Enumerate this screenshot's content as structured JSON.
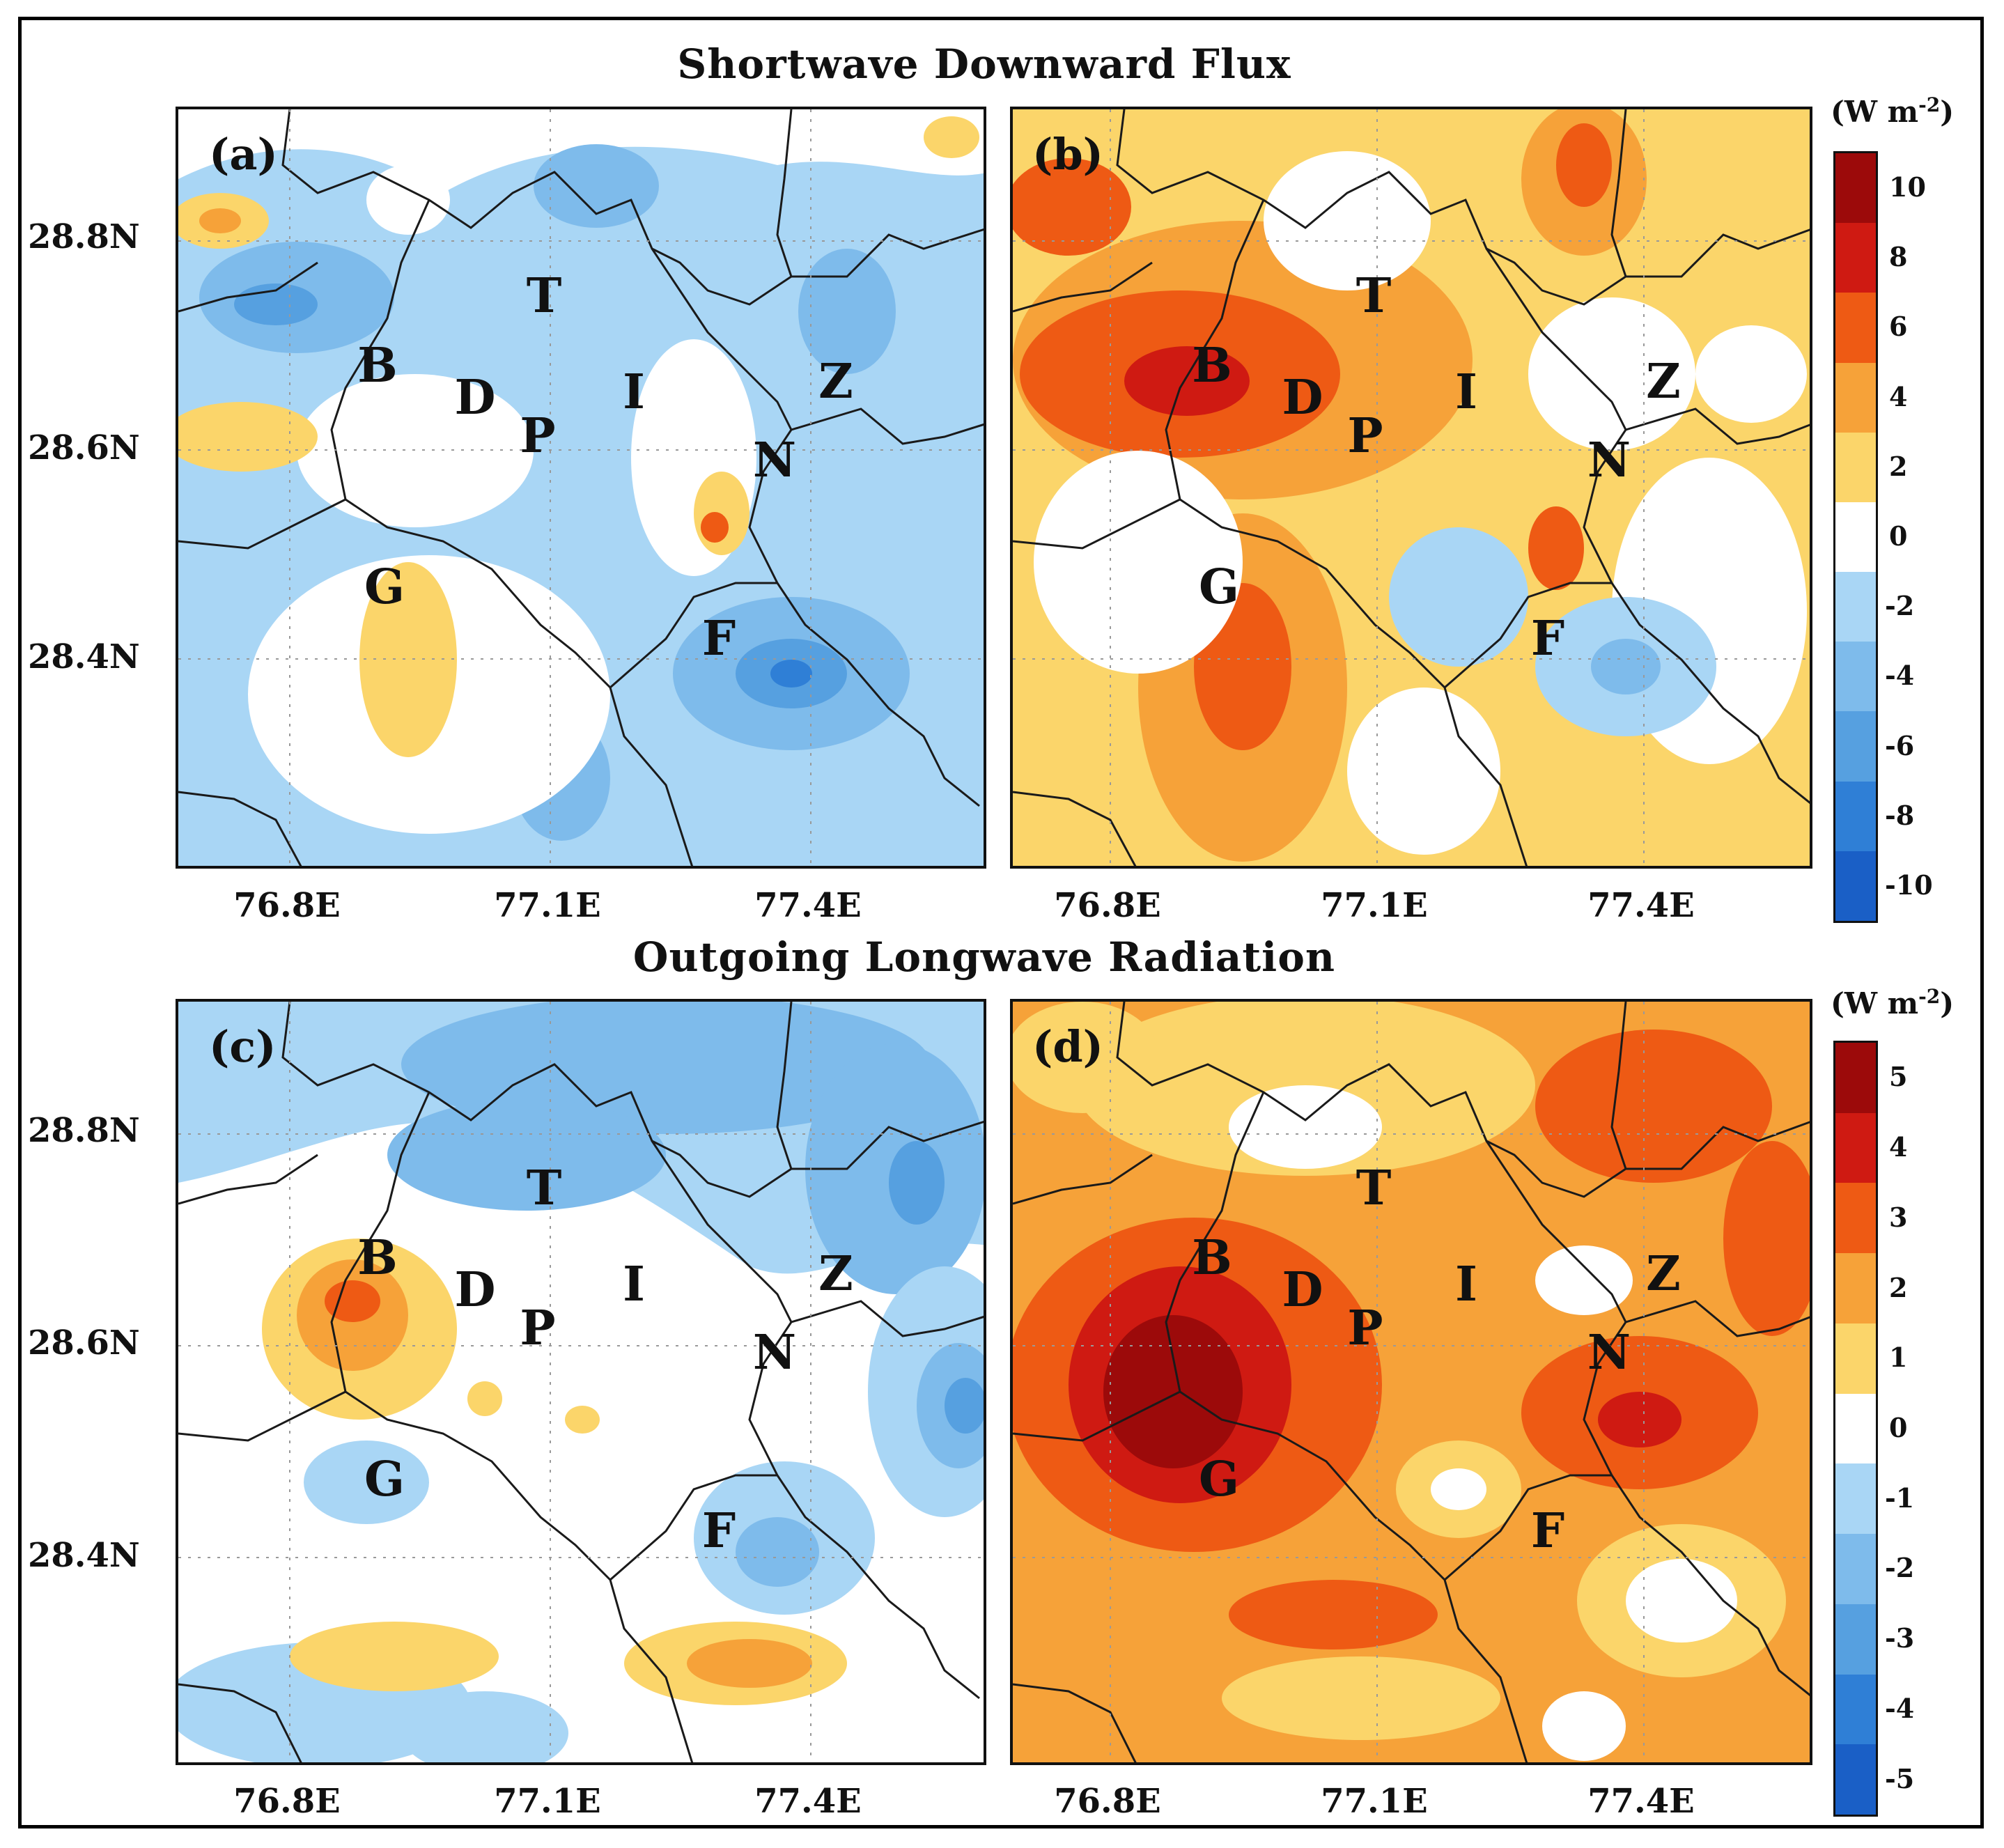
{
  "titles": {
    "top": "Shortwave Downward Flux",
    "bottom": "Outgoing Longwave Radiation"
  },
  "panel_labels": [
    "(a)",
    "(b)",
    "(c)",
    "(d)"
  ],
  "city_labels": [
    "T",
    "B",
    "D",
    "P",
    "I",
    "Z",
    "N",
    "G",
    "F"
  ],
  "axes": {
    "lat_ticks": [
      "28.8N",
      "28.6N",
      "28.4N"
    ],
    "lon_ticks": [
      "76.8E",
      "77.1E",
      "77.4E"
    ]
  },
  "colorbar_top": {
    "unit_text": "(W m",
    "unit_sup": "-2",
    "unit_close": ")",
    "tick_labels": [
      "10",
      "8",
      "6",
      "4",
      "2",
      "0",
      "-2",
      "-4",
      "-6",
      "-8",
      "-10"
    ],
    "colors": [
      "#9c0a0a",
      "#cf1a12",
      "#ee5a14",
      "#f6a239",
      "#fbd56a",
      "#ffffff",
      "#a9d6f5",
      "#7ebbeb",
      "#56a0e0",
      "#2f7fd6",
      "#1a5fc6"
    ]
  },
  "colorbar_bottom": {
    "unit_text": "(W m",
    "unit_sup": "-2",
    "unit_close": ")",
    "tick_labels": [
      "5",
      "4",
      "3",
      "2",
      "1",
      "0",
      "-1",
      "-2",
      "-3",
      "-4",
      "-5"
    ],
    "colors": [
      "#9c0a0a",
      "#cf1a12",
      "#ee5a14",
      "#f6a239",
      "#fbd56a",
      "#ffffff",
      "#a9d6f5",
      "#7ebbeb",
      "#56a0e0",
      "#2f7fd6",
      "#1a5fc6"
    ]
  }
}
